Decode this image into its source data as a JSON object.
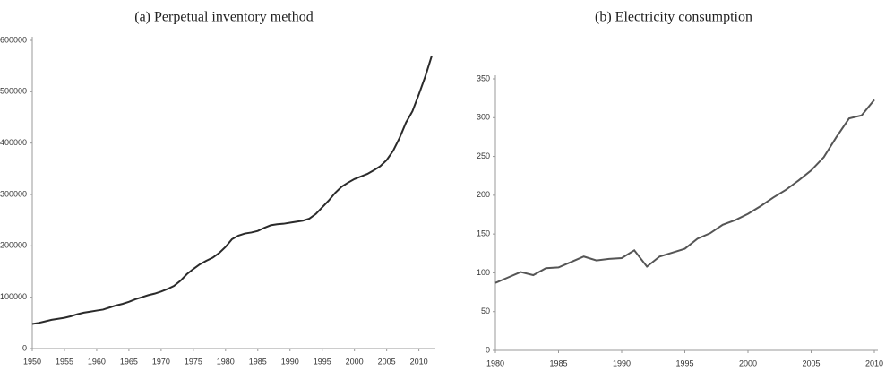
{
  "chart_data": [
    {
      "type": "line",
      "title": "(a) Perpetual inventory method",
      "x": [
        1950,
        1951,
        1952,
        1953,
        1954,
        1955,
        1956,
        1957,
        1958,
        1959,
        1960,
        1961,
        1962,
        1963,
        1964,
        1965,
        1966,
        1967,
        1968,
        1969,
        1970,
        1971,
        1972,
        1973,
        1974,
        1975,
        1976,
        1977,
        1978,
        1979,
        1980,
        1981,
        1982,
        1983,
        1984,
        1985,
        1986,
        1987,
        1988,
        1989,
        1990,
        1991,
        1992,
        1993,
        1994,
        1995,
        1996,
        1997,
        1998,
        1999,
        2000,
        2001,
        2002,
        2003,
        2004,
        2005,
        2006,
        2007,
        2008,
        2009,
        2010,
        2011,
        2012
      ],
      "series": [
        {
          "color": "#2a2a2a",
          "values": [
            48000,
            50000,
            53000,
            56000,
            58000,
            60000,
            63000,
            67000,
            70000,
            72000,
            74000,
            76000,
            80000,
            84000,
            87000,
            91000,
            96000,
            100000,
            104000,
            107000,
            111000,
            116000,
            122000,
            132000,
            145000,
            155000,
            164000,
            171000,
            177000,
            186000,
            198000,
            213000,
            220000,
            224000,
            226000,
            229000,
            235000,
            240000,
            242000,
            243000,
            245000,
            247000,
            249000,
            253000,
            262000,
            275000,
            288000,
            303000,
            315000,
            323000,
            330000,
            335000,
            340000,
            347000,
            355000,
            367000,
            385000,
            410000,
            440000,
            462000,
            495000,
            530000,
            570000
          ]
        }
      ],
      "xlim": [
        1950,
        2012
      ],
      "xticks": [
        1950,
        1955,
        1960,
        1965,
        1970,
        1975,
        1980,
        1985,
        1990,
        1995,
        2000,
        2005,
        2010
      ],
      "ylim": [
        0,
        600000
      ],
      "yticks": [
        0,
        100000,
        200000,
        300000,
        400000,
        500000,
        600000
      ]
    },
    {
      "type": "line",
      "title": "(b) Electricity consumption",
      "x": [
        1980,
        1981,
        1982,
        1983,
        1984,
        1985,
        1986,
        1987,
        1988,
        1989,
        1990,
        1991,
        1992,
        1993,
        1994,
        1995,
        1996,
        1997,
        1998,
        1999,
        2000,
        2001,
        2002,
        2003,
        2004,
        2005,
        2006,
        2007,
        2008,
        2009,
        2010
      ],
      "series": [
        {
          "color": "#555555",
          "values": [
            87,
            94,
            101,
            97,
            106,
            107,
            114,
            121,
            116,
            118,
            119,
            129,
            108,
            121,
            126,
            131,
            144,
            151,
            162,
            168,
            176,
            186,
            197,
            207,
            219,
            232,
            249,
            275,
            299,
            303,
            323
          ]
        }
      ],
      "xlim": [
        1980,
        2010
      ],
      "xticks": [
        1980,
        1985,
        1990,
        1995,
        2000,
        2005,
        2010
      ],
      "ylim": [
        0,
        350
      ],
      "yticks": [
        0,
        50,
        100,
        150,
        200,
        250,
        300,
        350
      ]
    }
  ]
}
